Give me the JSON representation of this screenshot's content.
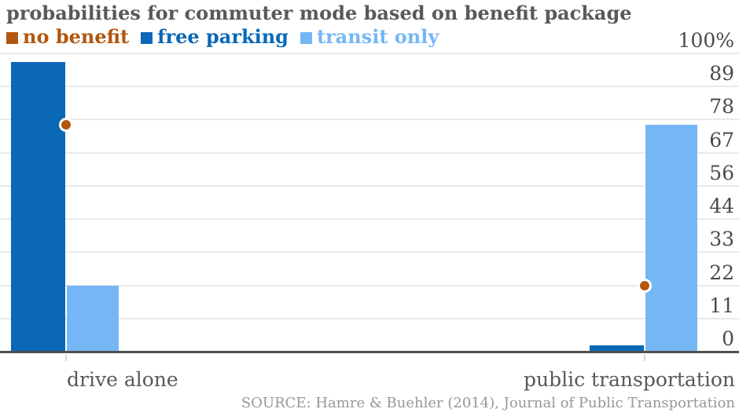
{
  "chart_data": {
    "type": "bar",
    "title": "probabilities for commuter mode based on benefit package",
    "categories": [
      "drive alone",
      "public transportation"
    ],
    "series": [
      {
        "name": "no benefit",
        "mark": "point",
        "color": "#b3560e",
        "values": [
          76,
          22
        ]
      },
      {
        "name": "free parking",
        "mark": "bar",
        "color": "#0a68b6",
        "values": [
          97,
          2
        ]
      },
      {
        "name": "transit only",
        "mark": "bar",
        "color": "#75b7f4",
        "values": [
          22,
          76
        ]
      }
    ],
    "ylabel": "",
    "xlabel": "",
    "ylim": [
      0,
      100
    ],
    "yticks": [
      "100%",
      "89",
      "78",
      "67",
      "56",
      "44",
      "33",
      "22",
      "11",
      "0"
    ],
    "ytick_values": [
      100,
      88.9,
      77.8,
      66.7,
      55.6,
      44.4,
      33.3,
      22.2,
      11.1,
      0
    ],
    "grid": true,
    "legend_position": "top-left",
    "source": "SOURCE: Hamre & Buehler (2014), Journal of Public Transportation"
  },
  "colors": {
    "title_text": "#59595b",
    "axis_text": "#4b4b4d",
    "source_text": "#97979a",
    "gridline": "#e9e9e9",
    "baseline": "#4e4e50",
    "background": "#ffffff"
  }
}
